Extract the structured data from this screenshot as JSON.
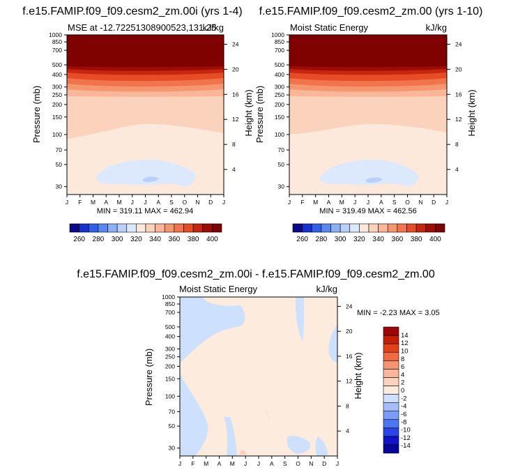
{
  "colors": {
    "mse_levels": [
      "#0a0a8a",
      "#1a2fd0",
      "#3060e8",
      "#5a87f0",
      "#8cb0f5",
      "#b8d0fa",
      "#dce9fd",
      "#fde9db",
      "#fbd2bc",
      "#f9b699",
      "#f6966f",
      "#f2744c",
      "#e64d26",
      "#c7260e",
      "#9d0d05",
      "#7f0200"
    ],
    "diff_levels": [
      "#06069a",
      "#1111c8",
      "#2a44e6",
      "#4d74f2",
      "#7a9bf7",
      "#a6bdfb",
      "#cde0fd",
      "#fdebdd",
      "#fbd3bd",
      "#f9b79b",
      "#f59470",
      "#ef6a44",
      "#e24118",
      "#c41e06",
      "#9d0806"
    ]
  },
  "panels": [
    {
      "title": "f.e15.FAMIP.f09_f09.cesm2_zm.00i (yrs 1-4)",
      "left_label": "MSE at -12.72251308900523,131.25",
      "right_label": "kJ/kg",
      "ylabel": "Pressure (mb)",
      "ylabel_right": "Height (km)",
      "stats": "MIN = 319.11 MAX = 462.94"
    },
    {
      "title": "f.e15.FAMIP.f09_f09.cesm2_zm.00 (yrs 1-10)",
      "left_label": "Moist Static Energy",
      "right_label": "kJ/kg",
      "ylabel": "Pressure (mb)",
      "ylabel_right": "Height (km)",
      "stats": "MIN = 319.49 MAX = 462.56"
    },
    {
      "title": "f.e15.FAMIP.f09_f09.cesm2_zm.00i - f.e15.FAMIP.f09_f09.cesm2_zm.00",
      "left_label": "Moist Static Energy",
      "right_label": "kJ/kg",
      "ylabel": "Pressure (mb)",
      "ylabel_right": "Height (km)",
      "stats": "MIN =  -2.23 MAX =   3.05"
    }
  ],
  "chart_data": [
    {
      "type": "heatmap",
      "title": "f.e15.FAMIP.f09_f09.cesm2_zm.00i (yrs 1-4)",
      "x_ticks": [
        "J",
        "F",
        "M",
        "A",
        "M",
        "J",
        "J",
        "A",
        "S",
        "O",
        "N",
        "D",
        "J"
      ],
      "pressure_ticks": [
        30,
        50,
        70,
        100,
        150,
        200,
        250,
        300,
        400,
        500,
        700,
        850,
        1000
      ],
      "pressure_tick_labels": [
        "30",
        "50",
        "70",
        "100",
        "150",
        "200",
        "250",
        "300",
        "400",
        "500",
        "700",
        "850",
        "1000"
      ],
      "height_ticks": [
        4,
        8,
        12,
        16,
        20,
        24
      ],
      "height_tick_labels": [
        "4",
        "8",
        "12",
        "16",
        "20",
        "24"
      ],
      "ylim_pressure_mb": [
        1000,
        25
      ],
      "colorbar": {
        "levels": [
          250,
          260,
          270,
          280,
          290,
          300,
          310,
          320,
          330,
          340,
          350,
          360,
          370,
          380,
          390,
          400,
          410
        ],
        "labels": [
          "260",
          "280",
          "300",
          "320",
          "340",
          "360",
          "380",
          "400"
        ],
        "label_values": [
          260,
          280,
          300,
          320,
          340,
          360,
          380,
          400
        ]
      },
      "min": 319.11,
      "max": 462.94
    },
    {
      "type": "heatmap",
      "title": "f.e15.FAMIP.f09_f09.cesm2_zm.00 (yrs 1-10)",
      "x_ticks": [
        "J",
        "F",
        "M",
        "A",
        "M",
        "J",
        "J",
        "A",
        "S",
        "O",
        "N",
        "D",
        "J"
      ],
      "pressure_ticks": [
        30,
        50,
        70,
        100,
        150,
        200,
        250,
        300,
        400,
        500,
        700,
        850,
        1000
      ],
      "pressure_tick_labels": [
        "30",
        "50",
        "70",
        "100",
        "150",
        "200",
        "250",
        "300",
        "400",
        "500",
        "700",
        "850",
        "1000"
      ],
      "height_ticks": [
        4,
        8,
        12,
        16,
        20,
        24
      ],
      "height_tick_labels": [
        "4",
        "8",
        "12",
        "16",
        "20",
        "24"
      ],
      "ylim_pressure_mb": [
        1000,
        25
      ],
      "colorbar": {
        "levels": [
          250,
          260,
          270,
          280,
          290,
          300,
          310,
          320,
          330,
          340,
          350,
          360,
          370,
          380,
          390,
          400,
          410
        ],
        "labels": [
          "260",
          "280",
          "300",
          "320",
          "340",
          "360",
          "380",
          "400"
        ],
        "label_values": [
          260,
          280,
          300,
          320,
          340,
          360,
          380,
          400
        ]
      },
      "min": 319.49,
      "max": 462.56
    },
    {
      "type": "heatmap",
      "title": "f.e15.FAMIP.f09_f09.cesm2_zm.00i - f.e15.FAMIP.f09_f09.cesm2_zm.00",
      "x_ticks": [
        "J",
        "F",
        "M",
        "A",
        "M",
        "J",
        "J",
        "A",
        "S",
        "O",
        "N",
        "D",
        "J"
      ],
      "pressure_ticks": [
        30,
        50,
        70,
        100,
        150,
        200,
        250,
        300,
        400,
        500,
        700,
        850,
        1000
      ],
      "pressure_tick_labels": [
        "30",
        "50",
        "70",
        "100",
        "150",
        "200",
        "250",
        "300",
        "400",
        "500",
        "700",
        "850",
        "1000"
      ],
      "height_ticks": [
        4,
        8,
        12,
        16,
        20,
        24
      ],
      "height_tick_labels": [
        "4",
        "8",
        "12",
        "16",
        "20",
        "24"
      ],
      "ylim_pressure_mb": [
        1000,
        25
      ],
      "colorbar": {
        "levels": [
          -16,
          -14,
          -12,
          -10,
          -8,
          -6,
          -4,
          -2,
          0,
          2,
          4,
          6,
          8,
          10,
          12,
          14,
          16
        ],
        "labels": [
          "-14",
          "-12",
          "-10",
          "-8",
          "-6",
          "-4",
          "-2",
          "0",
          "2",
          "4",
          "6",
          "8",
          "10",
          "12",
          "14"
        ],
        "label_values": [
          -14,
          -12,
          -10,
          -8,
          -6,
          -4,
          -2,
          0,
          2,
          4,
          6,
          8,
          10,
          12,
          14
        ]
      },
      "min": -2.23,
      "max": 3.05
    }
  ]
}
